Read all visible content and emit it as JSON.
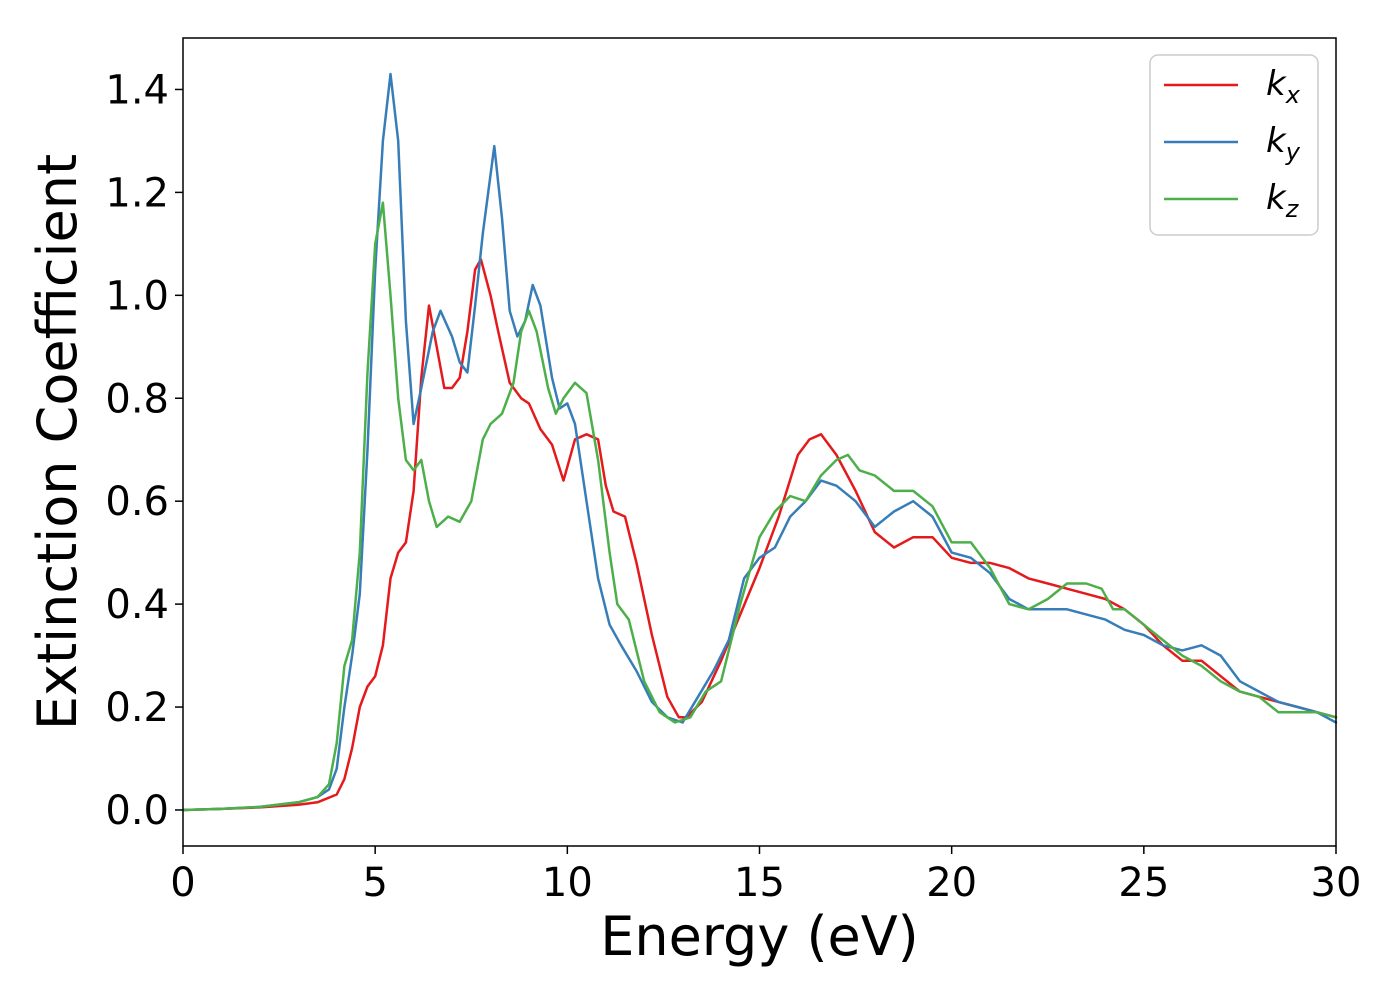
{
  "chart_data": {
    "type": "line",
    "xlabel": "Energy (eV)",
    "ylabel": "Extinction Coefficient",
    "xlim": [
      0,
      30
    ],
    "ylim": [
      -0.07,
      1.5
    ],
    "xticks": [
      0,
      5,
      10,
      15,
      20,
      25,
      30
    ],
    "xtick_labels": [
      "0",
      "5",
      "10",
      "15",
      "20",
      "25",
      "30"
    ],
    "yticks": [
      0.0,
      0.2,
      0.4,
      0.6,
      0.8,
      1.0,
      1.2,
      1.4
    ],
    "ytick_labels": [
      "0.0",
      "0.2",
      "0.4",
      "0.6",
      "0.8",
      "1.0",
      "1.2",
      "1.4"
    ],
    "grid": false,
    "legend_position": "top-right",
    "series": [
      {
        "name": "k_x",
        "label_main": "k",
        "label_sub": "x",
        "color": "#e41a1c",
        "points": [
          [
            0,
            0
          ],
          [
            1,
            0.002
          ],
          [
            2,
            0.005
          ],
          [
            3,
            0.01
          ],
          [
            3.5,
            0.015
          ],
          [
            4,
            0.03
          ],
          [
            4.2,
            0.06
          ],
          [
            4.4,
            0.12
          ],
          [
            4.6,
            0.2
          ],
          [
            4.8,
            0.24
          ],
          [
            5,
            0.26
          ],
          [
            5.2,
            0.32
          ],
          [
            5.4,
            0.45
          ],
          [
            5.6,
            0.5
          ],
          [
            5.8,
            0.52
          ],
          [
            6,
            0.62
          ],
          [
            6.2,
            0.84
          ],
          [
            6.4,
            0.98
          ],
          [
            6.6,
            0.9
          ],
          [
            6.8,
            0.82
          ],
          [
            7,
            0.82
          ],
          [
            7.2,
            0.84
          ],
          [
            7.4,
            0.93
          ],
          [
            7.6,
            1.05
          ],
          [
            7.75,
            1.07
          ],
          [
            8,
            1.0
          ],
          [
            8.2,
            0.93
          ],
          [
            8.5,
            0.83
          ],
          [
            8.8,
            0.8
          ],
          [
            9,
            0.79
          ],
          [
            9.3,
            0.74
          ],
          [
            9.6,
            0.71
          ],
          [
            9.9,
            0.64
          ],
          [
            10.2,
            0.72
          ],
          [
            10.5,
            0.73
          ],
          [
            10.8,
            0.72
          ],
          [
            11,
            0.63
          ],
          [
            11.2,
            0.58
          ],
          [
            11.5,
            0.57
          ],
          [
            11.8,
            0.48
          ],
          [
            12.2,
            0.34
          ],
          [
            12.6,
            0.22
          ],
          [
            12.9,
            0.18
          ],
          [
            13.1,
            0.18
          ],
          [
            13.5,
            0.21
          ],
          [
            14,
            0.29
          ],
          [
            14.5,
            0.38
          ],
          [
            15,
            0.47
          ],
          [
            15.5,
            0.57
          ],
          [
            16,
            0.69
          ],
          [
            16.3,
            0.72
          ],
          [
            16.6,
            0.73
          ],
          [
            17,
            0.69
          ],
          [
            17.5,
            0.62
          ],
          [
            18,
            0.54
          ],
          [
            18.5,
            0.51
          ],
          [
            19,
            0.53
          ],
          [
            19.5,
            0.53
          ],
          [
            20,
            0.49
          ],
          [
            20.5,
            0.48
          ],
          [
            21,
            0.48
          ],
          [
            21.5,
            0.47
          ],
          [
            22,
            0.45
          ],
          [
            22.5,
            0.44
          ],
          [
            23,
            0.43
          ],
          [
            23.5,
            0.42
          ],
          [
            24,
            0.41
          ],
          [
            24.5,
            0.39
          ],
          [
            25,
            0.36
          ],
          [
            25.5,
            0.32
          ],
          [
            26,
            0.29
          ],
          [
            26.5,
            0.29
          ],
          [
            27,
            0.26
          ],
          [
            27.5,
            0.23
          ],
          [
            28,
            0.22
          ],
          [
            28.5,
            0.21
          ],
          [
            29,
            0.2
          ],
          [
            29.5,
            0.19
          ],
          [
            30,
            0.18
          ]
        ]
      },
      {
        "name": "k_y",
        "label_main": "k",
        "label_sub": "y",
        "color": "#377eb8",
        "points": [
          [
            0,
            0
          ],
          [
            1,
            0.002
          ],
          [
            2,
            0.006
          ],
          [
            3,
            0.015
          ],
          [
            3.5,
            0.025
          ],
          [
            3.8,
            0.04
          ],
          [
            4,
            0.08
          ],
          [
            4.2,
            0.2
          ],
          [
            4.4,
            0.3
          ],
          [
            4.6,
            0.42
          ],
          [
            4.8,
            0.7
          ],
          [
            5,
            1.05
          ],
          [
            5.2,
            1.3
          ],
          [
            5.4,
            1.43
          ],
          [
            5.6,
            1.3
          ],
          [
            5.8,
            0.95
          ],
          [
            6,
            0.75
          ],
          [
            6.2,
            0.82
          ],
          [
            6.5,
            0.93
          ],
          [
            6.7,
            0.97
          ],
          [
            7,
            0.92
          ],
          [
            7.2,
            0.87
          ],
          [
            7.4,
            0.85
          ],
          [
            7.6,
            0.98
          ],
          [
            7.8,
            1.12
          ],
          [
            8.1,
            1.29
          ],
          [
            8.3,
            1.15
          ],
          [
            8.5,
            0.97
          ],
          [
            8.7,
            0.92
          ],
          [
            8.9,
            0.95
          ],
          [
            9.1,
            1.02
          ],
          [
            9.3,
            0.98
          ],
          [
            9.6,
            0.84
          ],
          [
            9.8,
            0.78
          ],
          [
            10,
            0.79
          ],
          [
            10.2,
            0.75
          ],
          [
            10.5,
            0.6
          ],
          [
            10.8,
            0.45
          ],
          [
            11.1,
            0.36
          ],
          [
            11.4,
            0.32
          ],
          [
            11.8,
            0.27
          ],
          [
            12.2,
            0.21
          ],
          [
            12.6,
            0.18
          ],
          [
            13,
            0.17
          ],
          [
            13.4,
            0.22
          ],
          [
            13.8,
            0.27
          ],
          [
            14.2,
            0.33
          ],
          [
            14.6,
            0.45
          ],
          [
            15,
            0.49
          ],
          [
            15.4,
            0.51
          ],
          [
            15.8,
            0.57
          ],
          [
            16.2,
            0.6
          ],
          [
            16.6,
            0.64
          ],
          [
            17,
            0.63
          ],
          [
            17.5,
            0.6
          ],
          [
            18,
            0.55
          ],
          [
            18.5,
            0.58
          ],
          [
            19,
            0.6
          ],
          [
            19.5,
            0.57
          ],
          [
            20,
            0.5
          ],
          [
            20.5,
            0.49
          ],
          [
            21,
            0.46
          ],
          [
            21.5,
            0.41
          ],
          [
            22,
            0.39
          ],
          [
            22.5,
            0.39
          ],
          [
            23,
            0.39
          ],
          [
            23.5,
            0.38
          ],
          [
            24,
            0.37
          ],
          [
            24.5,
            0.35
          ],
          [
            25,
            0.34
          ],
          [
            25.5,
            0.32
          ],
          [
            26,
            0.31
          ],
          [
            26.5,
            0.32
          ],
          [
            27,
            0.3
          ],
          [
            27.5,
            0.25
          ],
          [
            28,
            0.23
          ],
          [
            28.5,
            0.21
          ],
          [
            29,
            0.2
          ],
          [
            29.5,
            0.19
          ],
          [
            30,
            0.17
          ]
        ]
      },
      {
        "name": "k_z",
        "label_main": "k",
        "label_sub": "z",
        "color": "#4daf4a",
        "points": [
          [
            0,
            0
          ],
          [
            1,
            0.002
          ],
          [
            2,
            0.006
          ],
          [
            3,
            0.015
          ],
          [
            3.5,
            0.025
          ],
          [
            3.8,
            0.05
          ],
          [
            4,
            0.13
          ],
          [
            4.2,
            0.28
          ],
          [
            4.4,
            0.33
          ],
          [
            4.6,
            0.5
          ],
          [
            4.8,
            0.85
          ],
          [
            5,
            1.1
          ],
          [
            5.2,
            1.18
          ],
          [
            5.4,
            1.0
          ],
          [
            5.6,
            0.8
          ],
          [
            5.8,
            0.68
          ],
          [
            6,
            0.66
          ],
          [
            6.2,
            0.68
          ],
          [
            6.4,
            0.6
          ],
          [
            6.6,
            0.55
          ],
          [
            6.9,
            0.57
          ],
          [
            7.2,
            0.56
          ],
          [
            7.5,
            0.6
          ],
          [
            7.8,
            0.72
          ],
          [
            8,
            0.75
          ],
          [
            8.3,
            0.77
          ],
          [
            8.6,
            0.83
          ],
          [
            8.8,
            0.93
          ],
          [
            9,
            0.97
          ],
          [
            9.2,
            0.93
          ],
          [
            9.5,
            0.82
          ],
          [
            9.7,
            0.77
          ],
          [
            9.9,
            0.8
          ],
          [
            10.2,
            0.83
          ],
          [
            10.5,
            0.81
          ],
          [
            10.8,
            0.68
          ],
          [
            11.1,
            0.5
          ],
          [
            11.3,
            0.4
          ],
          [
            11.6,
            0.37
          ],
          [
            12,
            0.25
          ],
          [
            12.4,
            0.19
          ],
          [
            12.8,
            0.17
          ],
          [
            13.2,
            0.18
          ],
          [
            13.6,
            0.23
          ],
          [
            14,
            0.25
          ],
          [
            14.5,
            0.4
          ],
          [
            15,
            0.53
          ],
          [
            15.4,
            0.58
          ],
          [
            15.8,
            0.61
          ],
          [
            16.2,
            0.6
          ],
          [
            16.6,
            0.65
          ],
          [
            17,
            0.68
          ],
          [
            17.3,
            0.69
          ],
          [
            17.6,
            0.66
          ],
          [
            18,
            0.65
          ],
          [
            18.5,
            0.62
          ],
          [
            19,
            0.62
          ],
          [
            19.5,
            0.59
          ],
          [
            20,
            0.52
          ],
          [
            20.5,
            0.52
          ],
          [
            21,
            0.47
          ],
          [
            21.5,
            0.4
          ],
          [
            22,
            0.39
          ],
          [
            22.5,
            0.41
          ],
          [
            23,
            0.44
          ],
          [
            23.5,
            0.44
          ],
          [
            23.9,
            0.43
          ],
          [
            24.2,
            0.39
          ],
          [
            24.5,
            0.39
          ],
          [
            25,
            0.36
          ],
          [
            25.5,
            0.33
          ],
          [
            26,
            0.3
          ],
          [
            26.5,
            0.28
          ],
          [
            27,
            0.25
          ],
          [
            27.5,
            0.23
          ],
          [
            28,
            0.22
          ],
          [
            28.5,
            0.19
          ],
          [
            29,
            0.19
          ],
          [
            29.5,
            0.19
          ],
          [
            30,
            0.18
          ]
        ]
      }
    ]
  }
}
